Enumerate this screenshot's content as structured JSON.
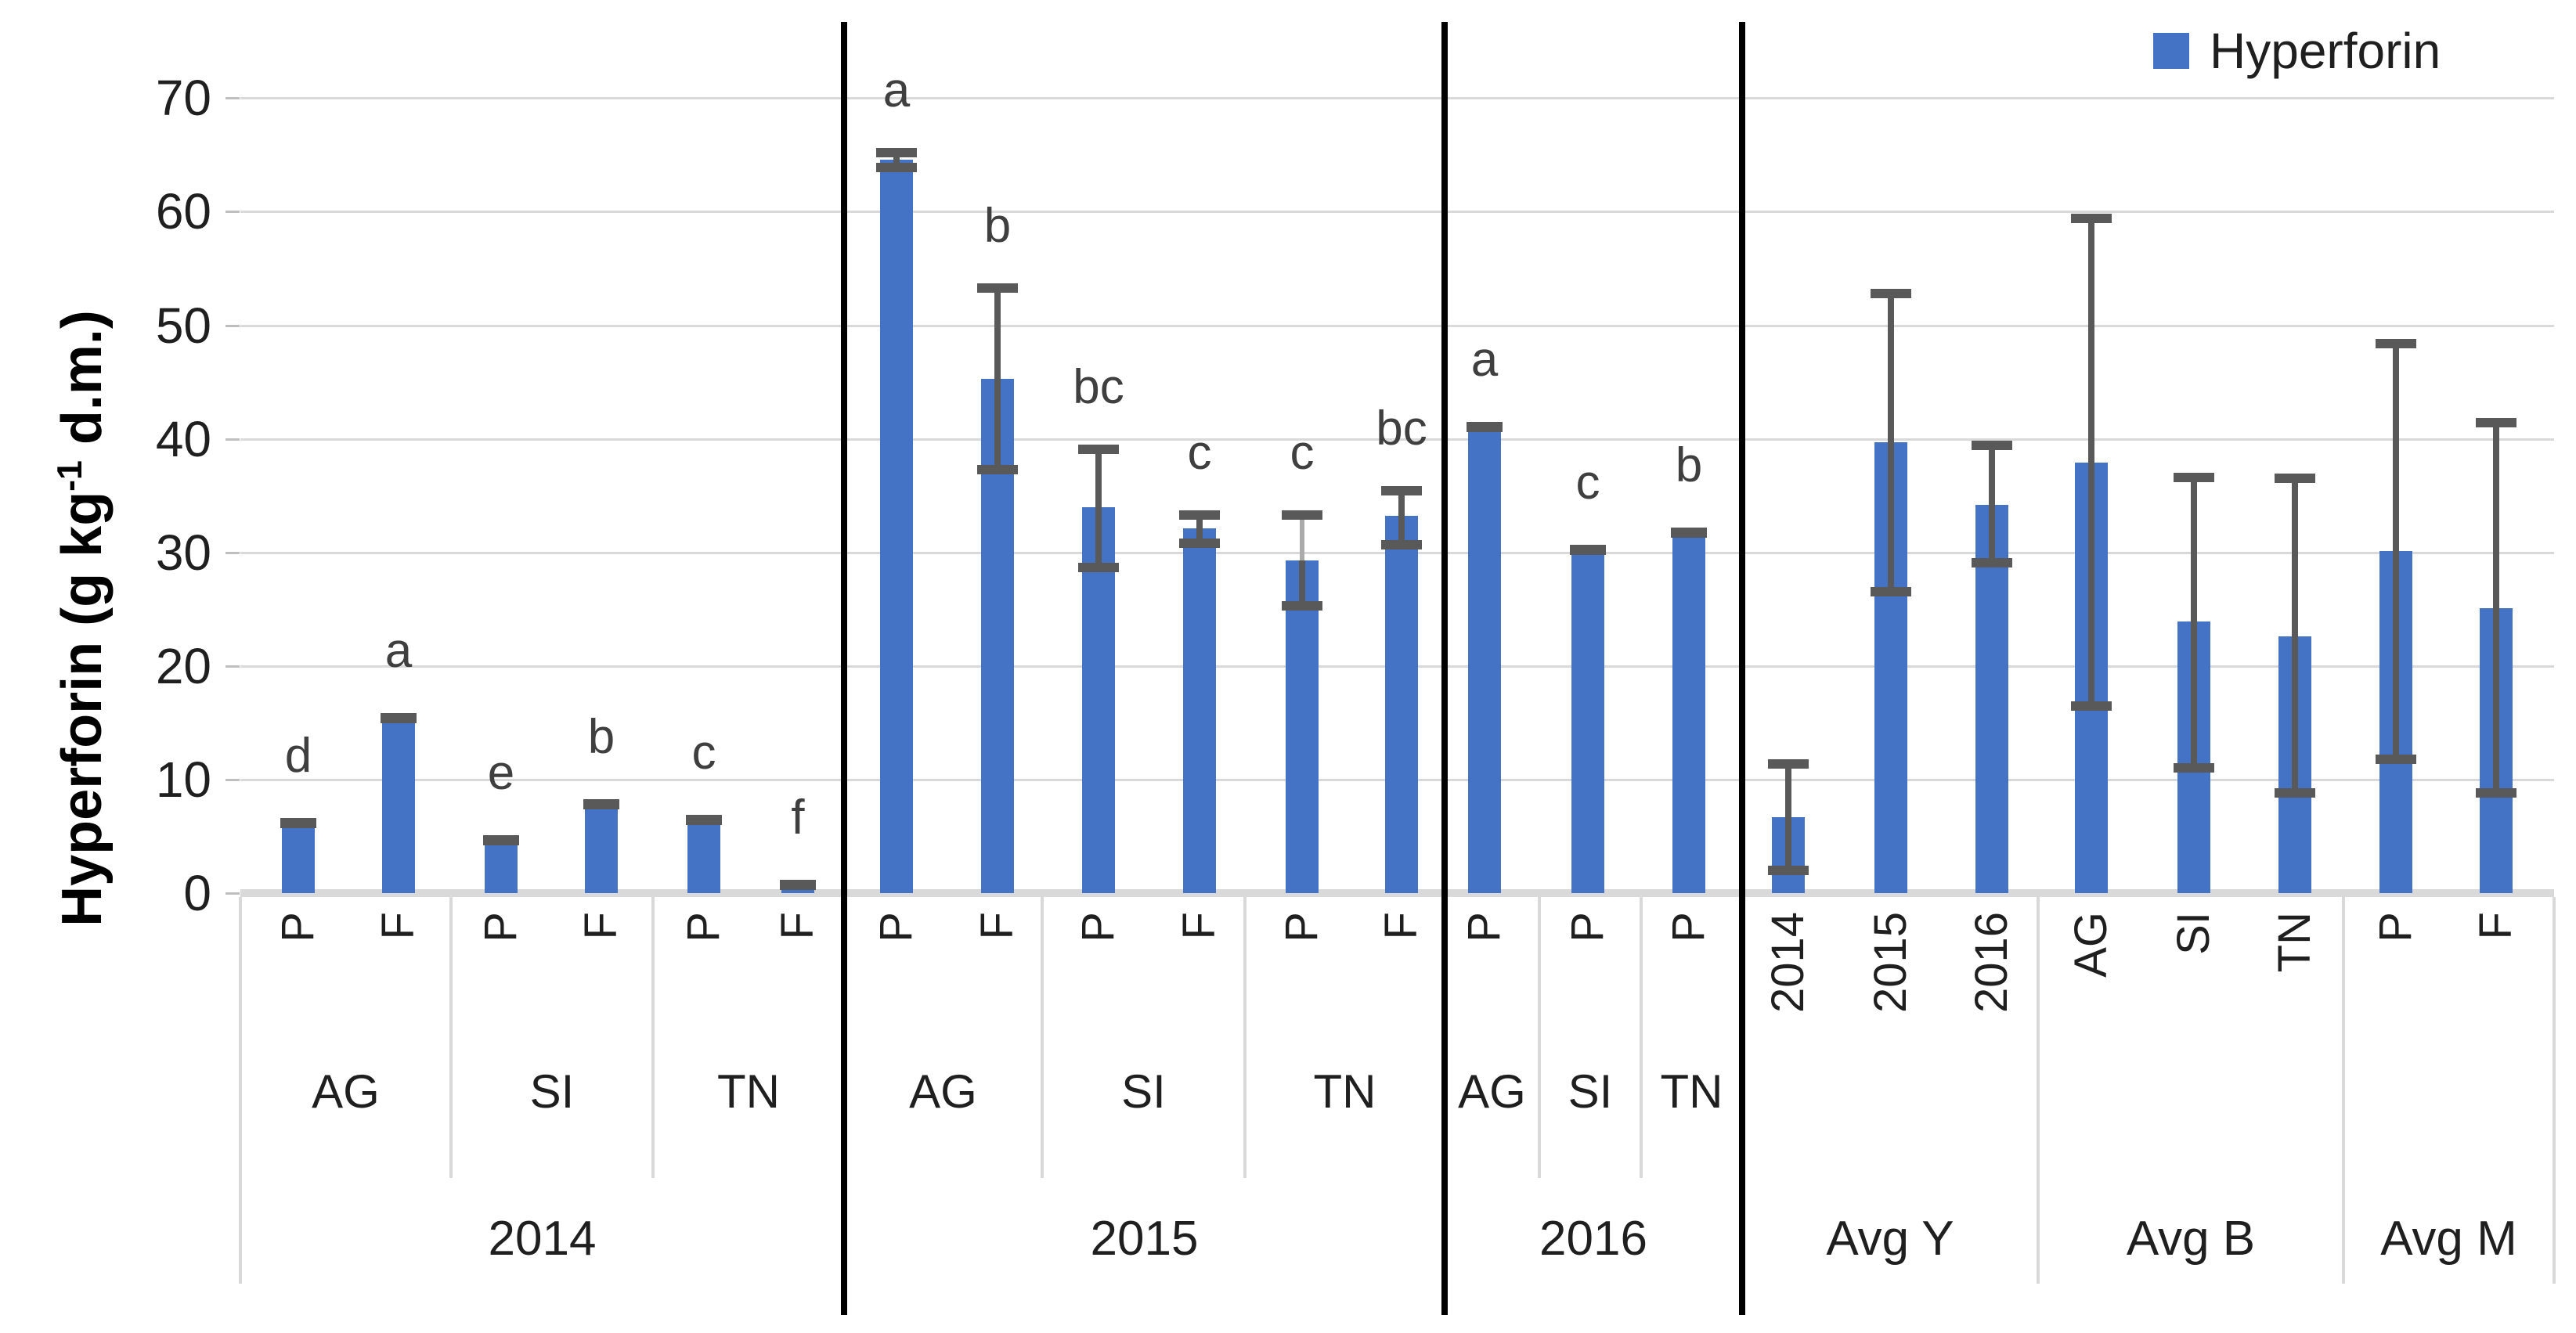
{
  "legend": {
    "label": "Hyperforin"
  },
  "y_axis": {
    "title_pre": "Hyperforin (g kg",
    "title_sup": "-1",
    "title_post": " d.m.)"
  },
  "chart_data": {
    "type": "bar",
    "title": "",
    "xlabel": "",
    "ylabel": "Hyperforin (g kg-1 d.m.)",
    "ylim": [
      0,
      70
    ],
    "yticks": [
      0,
      10,
      20,
      30,
      40,
      50,
      60,
      70
    ],
    "grid": "horizontal",
    "legend_position": "top-right",
    "legend_entries": [
      "Hyperforin"
    ],
    "bar_color": "#4472C4",
    "error_color": "#595959",
    "error_color_light": "#ABABAB",
    "groups": [
      {
        "label": "2014",
        "subgroups": [
          {
            "label": "AG",
            "bars": [
              {
                "cat": "P",
                "value": 6.1,
                "letter": "d",
                "err_up": 0.3,
                "err_dn": 0.3,
                "small": true
              },
              {
                "cat": "F",
                "value": 15.4,
                "letter": "a",
                "err_up": 0.3,
                "err_dn": 0.3,
                "small": true
              }
            ]
          },
          {
            "label": "SI",
            "bars": [
              {
                "cat": "P",
                "value": 4.6,
                "letter": "e",
                "err_up": 0.3,
                "err_dn": 0.3,
                "small": true
              },
              {
                "cat": "F",
                "value": 7.8,
                "letter": "b",
                "err_up": 0.3,
                "err_dn": 0.3,
                "small": true
              }
            ]
          },
          {
            "label": "TN",
            "bars": [
              {
                "cat": "P",
                "value": 6.4,
                "letter": "c",
                "err_up": 0.3,
                "err_dn": 0.3,
                "small": true
              },
              {
                "cat": "F",
                "value": 0.7,
                "letter": "f",
                "err_up": 0.2,
                "err_dn": 0.2,
                "small": true
              }
            ]
          }
        ]
      },
      {
        "label": "2015",
        "subgroups": [
          {
            "label": "AG",
            "bars": [
              {
                "cat": "P",
                "value": 64.6,
                "letter": "a",
                "err_up": 0.6,
                "err_dn": 0.7
              },
              {
                "cat": "F",
                "value": 45.3,
                "letter": "b",
                "err_up": 8.0,
                "err_dn": 8.0
              }
            ]
          },
          {
            "label": "SI",
            "bars": [
              {
                "cat": "P",
                "value": 34.0,
                "letter": "bc",
                "err_up": 5.1,
                "err_dn": 5.3
              },
              {
                "cat": "F",
                "value": 32.1,
                "letter": "c",
                "err_up": 1.2,
                "err_dn": 1.3
              }
            ]
          },
          {
            "label": "TN",
            "bars": [
              {
                "cat": "P",
                "value": 29.3,
                "letter": "c",
                "err_up": 4.0,
                "err_dn": 4.0,
                "upper_light": true
              },
              {
                "cat": "F",
                "value": 33.2,
                "letter": "bc",
                "err_up": 2.2,
                "err_dn": 2.5
              }
            ]
          }
        ]
      },
      {
        "label": "2016",
        "subgroups": [
          {
            "label": "AG",
            "bars": [
              {
                "cat": "P",
                "value": 41.0,
                "letter": "a",
                "err_up": 0.3,
                "err_dn": 0.3,
                "small": true
              }
            ]
          },
          {
            "label": "SI",
            "bars": [
              {
                "cat": "P",
                "value": 30.2,
                "letter": "c",
                "err_up": 0.3,
                "err_dn": 0.3,
                "small": true
              }
            ]
          },
          {
            "label": "TN",
            "bars": [
              {
                "cat": "P",
                "value": 31.7,
                "letter": "b",
                "err_up": 0.3,
                "err_dn": 0.3,
                "small": true
              }
            ]
          }
        ]
      },
      {
        "label": "Avg Y",
        "subgroups": [
          {
            "label": "",
            "bars": [
              {
                "cat": "2014",
                "value": 6.7,
                "err_up": 4.7,
                "err_dn": 4.7
              },
              {
                "cat": "2015",
                "value": 39.7,
                "err_up": 13.1,
                "err_dn": 13.2
              },
              {
                "cat": "2016",
                "value": 34.2,
                "err_up": 5.2,
                "err_dn": 5.1
              }
            ]
          }
        ]
      },
      {
        "label": "Avg B",
        "subgroups": [
          {
            "label": "",
            "bars": [
              {
                "cat": "AG",
                "value": 37.9,
                "err_up": 21.5,
                "err_dn": 21.4
              },
              {
                "cat": "SI",
                "value": 23.9,
                "err_up": 12.7,
                "err_dn": 12.9
              },
              {
                "cat": "TN",
                "value": 22.6,
                "err_up": 13.9,
                "err_dn": 13.8
              }
            ]
          }
        ]
      },
      {
        "label": "Avg M",
        "subgroups": [
          {
            "label": "",
            "bars": [
              {
                "cat": "P",
                "value": 30.1,
                "err_up": 18.3,
                "err_dn": 18.3
              },
              {
                "cat": "F",
                "value": 25.1,
                "err_up": 16.3,
                "err_dn": 16.3
              }
            ]
          }
        ]
      }
    ]
  }
}
